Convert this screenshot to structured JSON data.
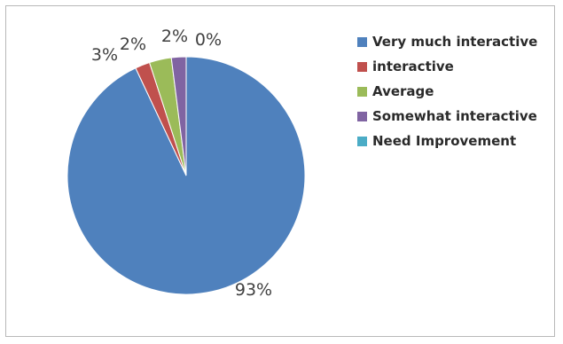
{
  "chart_data": {
    "type": "pie",
    "title": "",
    "categories": [
      "Very much interactive",
      "interactive",
      "Average",
      "Somewhat interactive",
      "Need Improvement"
    ],
    "values": [
      93,
      2,
      3,
      2,
      0
    ],
    "data_labels": [
      "93%",
      "2%",
      "3%",
      "2%",
      "0%"
    ],
    "colors": [
      "#4f81bd",
      "#c0504d",
      "#9bbb59",
      "#8064a2",
      "#4bacc6"
    ],
    "start_angle": "12 o'clock",
    "direction": "clockwise",
    "legend_position": "right"
  }
}
